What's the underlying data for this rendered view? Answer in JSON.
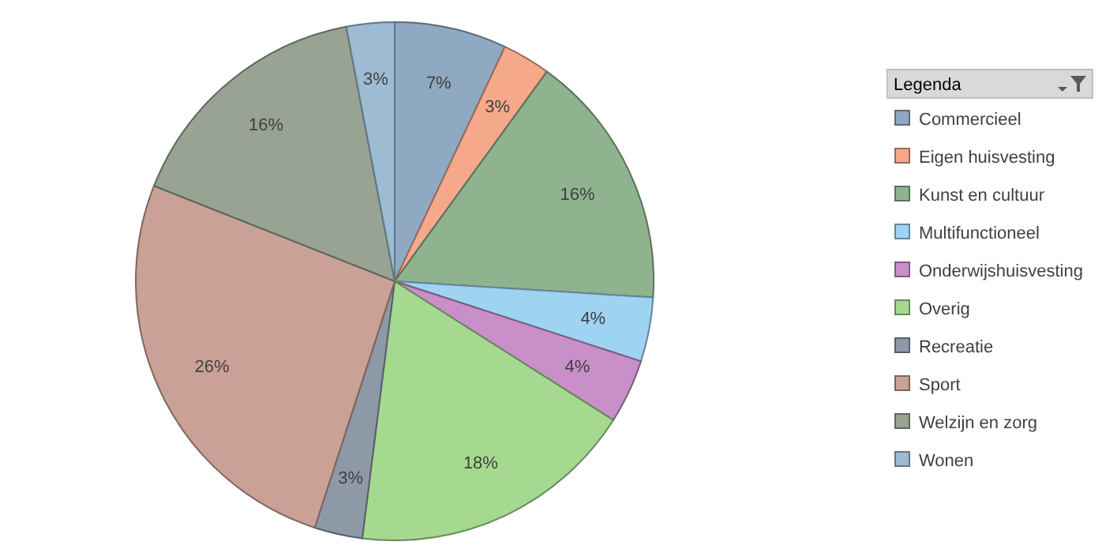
{
  "chart_data": {
    "type": "pie",
    "legend_title": "Legenda",
    "legend": "right",
    "categories": [
      "Commercieel",
      "Eigen huisvesting",
      "Kunst en cultuur",
      "Multifunctioneel",
      "Onderwijshuisvesting",
      "Overig",
      "Recreatie",
      "Sport",
      "Welzijn en zorg",
      "Wonen"
    ],
    "values": [
      7,
      3,
      16,
      4,
      4,
      18,
      3,
      26,
      16,
      3
    ],
    "value_labels": [
      "7%",
      "3%",
      "16%",
      "4%",
      "4%",
      "18%",
      "3%",
      "26%",
      "16%",
      "3%"
    ],
    "colors": [
      "#8fa9c2",
      "#f5a98a",
      "#8fb38f",
      "#9fd3f2",
      "#c98fc9",
      "#a5d98f",
      "#8d99a6",
      "#c9a196",
      "#98a394",
      "#9dbbd3"
    ]
  }
}
